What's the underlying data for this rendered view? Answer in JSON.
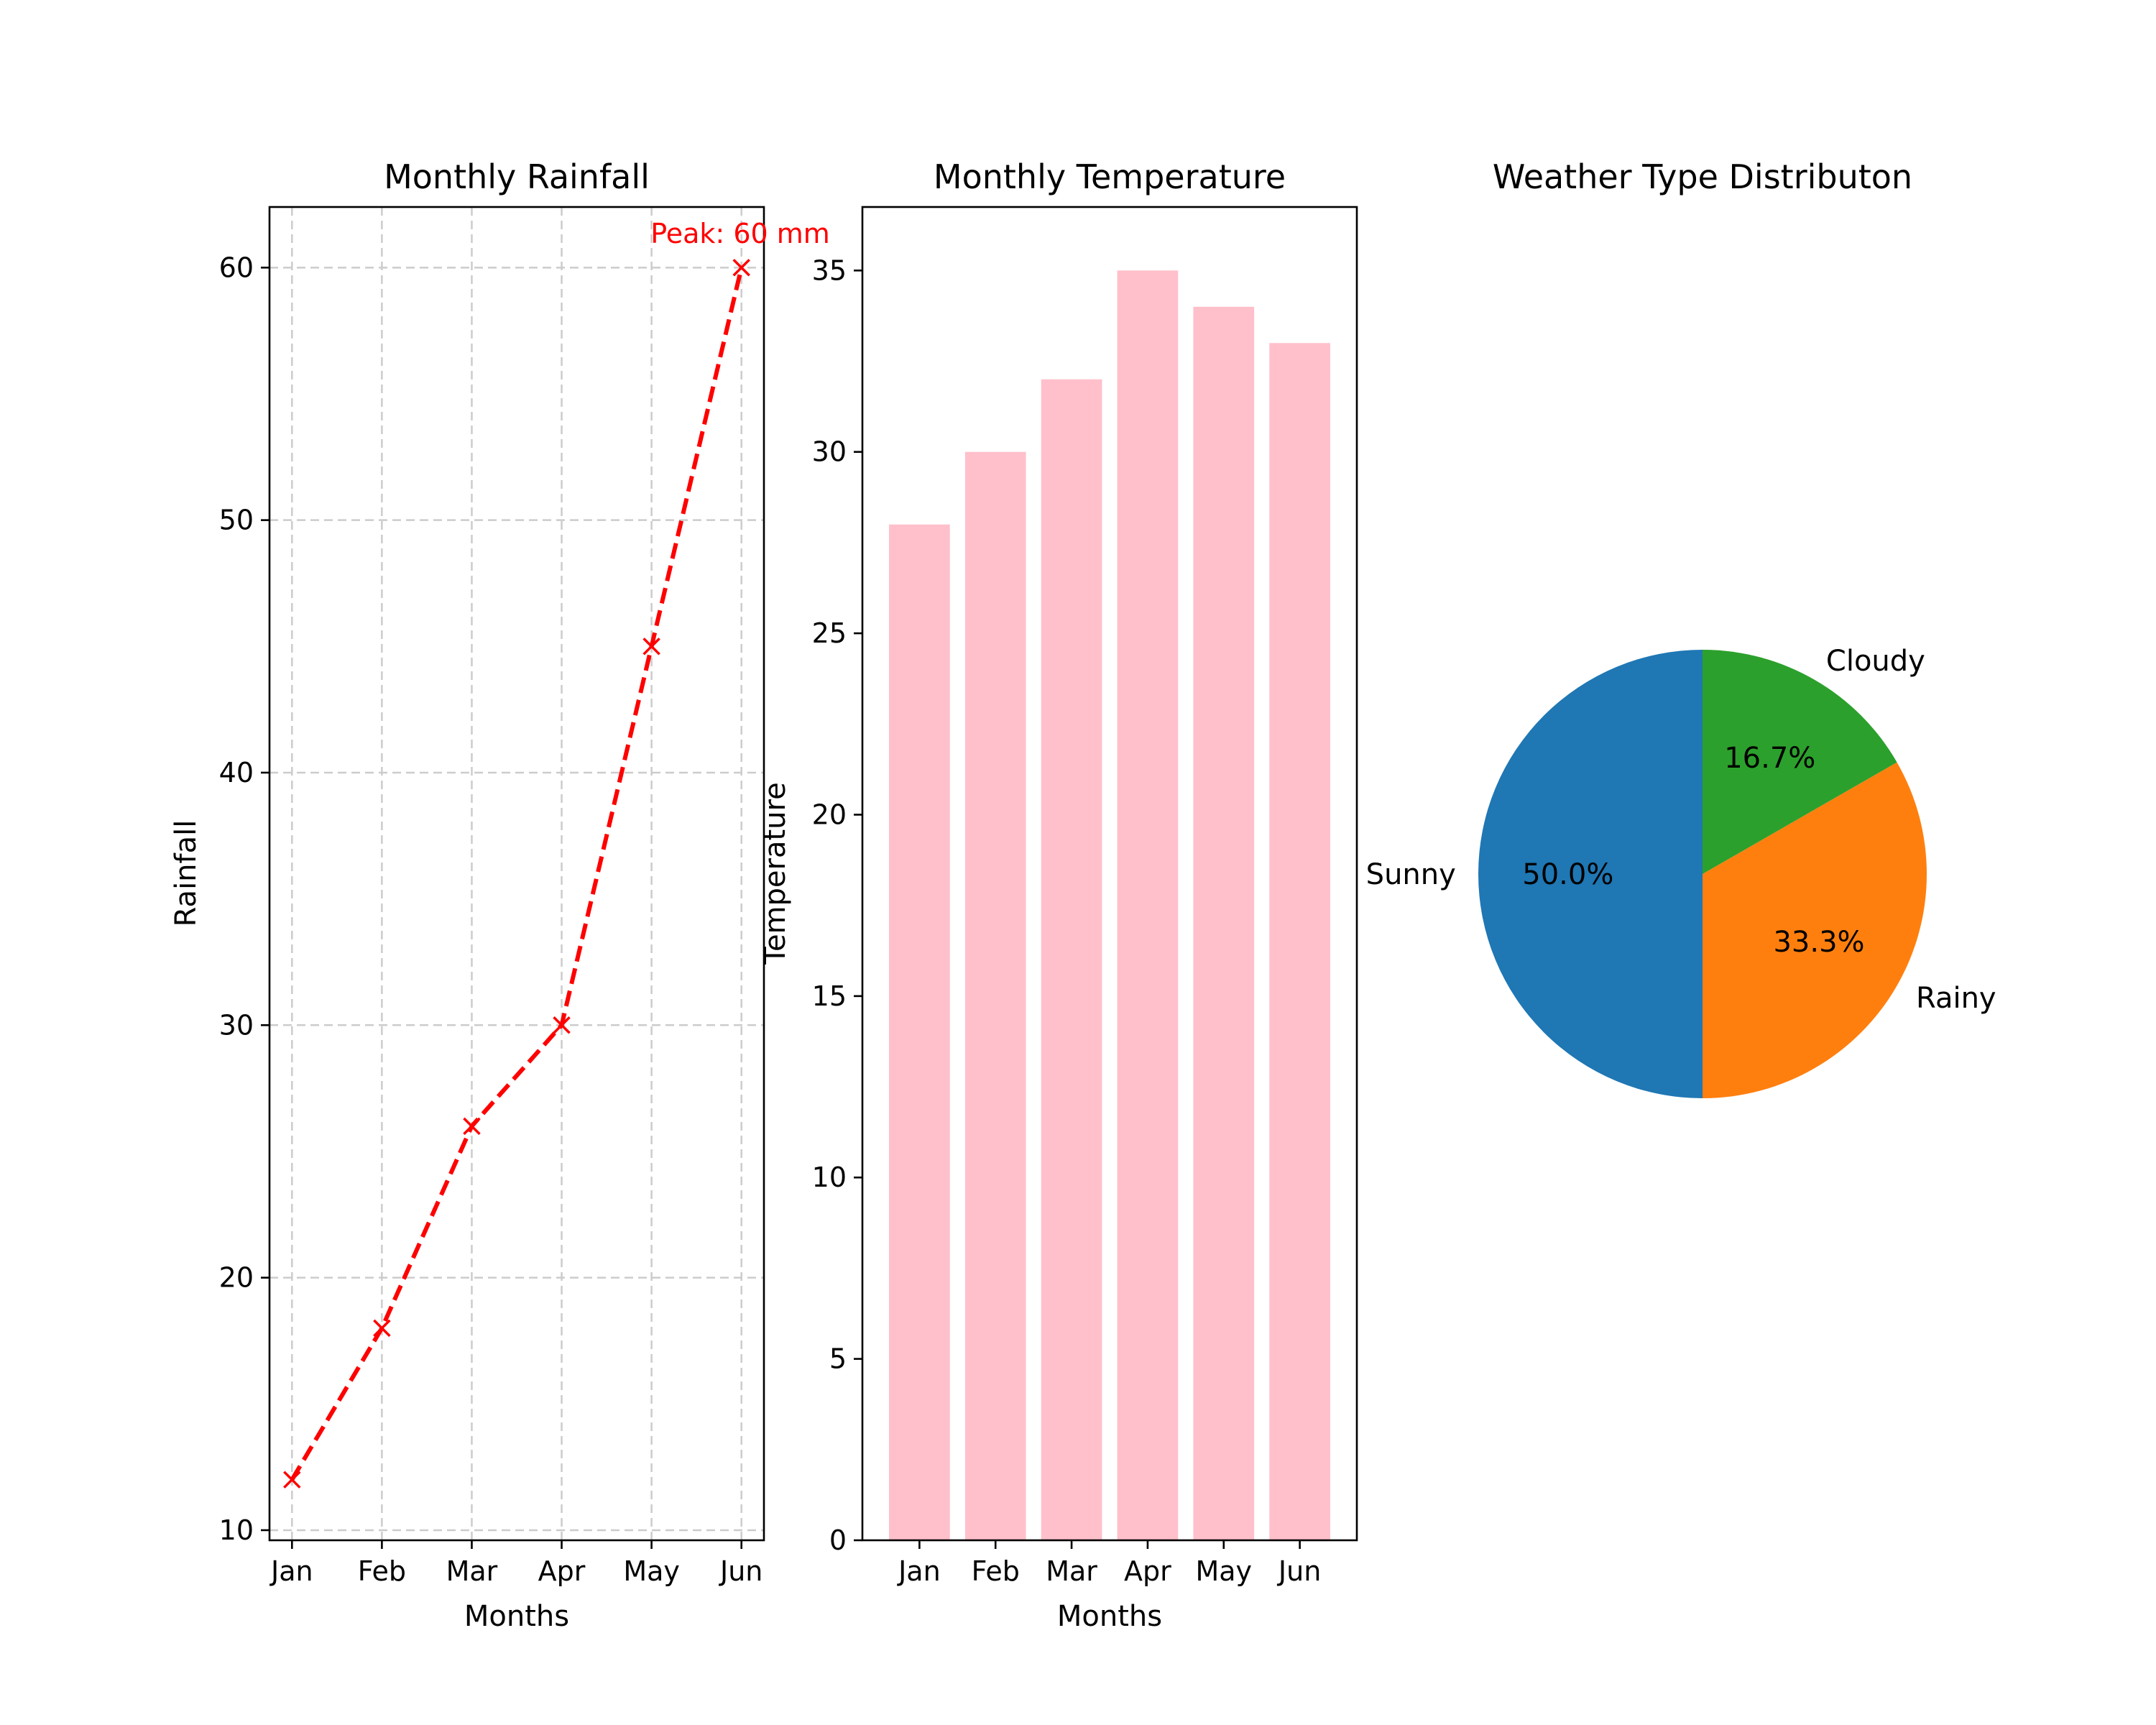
{
  "chart_data": [
    {
      "type": "line",
      "title": "Monthly Rainfall",
      "xlabel": "Months",
      "ylabel": "Rainfall",
      "categories": [
        "Jan",
        "Feb",
        "Mar",
        "Apr",
        "May",
        "Jun"
      ],
      "series": [
        {
          "values": [
            12,
            18,
            26,
            30,
            45,
            60
          ],
          "color": "#ff0000",
          "linestyle": "dashed",
          "marker": "x"
        }
      ],
      "ylim": [
        9.6,
        62.4
      ],
      "yticks": [
        10,
        20,
        30,
        40,
        50,
        60
      ],
      "grid": true,
      "annotation": {
        "text": "Peak: 60 mm",
        "x": "Jun",
        "y": 60,
        "color": "#ff0000"
      }
    },
    {
      "type": "bar",
      "title": "Monthly Temperature",
      "xlabel": "Months",
      "ylabel": "Temperature",
      "categories": [
        "Jan",
        "Feb",
        "Mar",
        "Apr",
        "May",
        "Jun"
      ],
      "values": [
        28,
        30,
        32,
        35,
        34,
        33
      ],
      "color": "#ffc0cb",
      "ylim": [
        0,
        36.75
      ],
      "yticks": [
        0,
        5,
        10,
        15,
        20,
        25,
        30,
        35
      ],
      "grid": false
    },
    {
      "type": "pie",
      "title": "Weather Type Distributon",
      "labels": [
        "Sunny",
        "Rainy",
        "Cloudy"
      ],
      "values": [
        50.0,
        33.3,
        16.7
      ],
      "percent_labels": [
        "50.0%",
        "33.3%",
        "16.7%"
      ],
      "colors": [
        "#1f77b4",
        "#ff7f0e",
        "#2ca02c"
      ],
      "start_angle": 90,
      "direction": "counterclockwise"
    }
  ]
}
